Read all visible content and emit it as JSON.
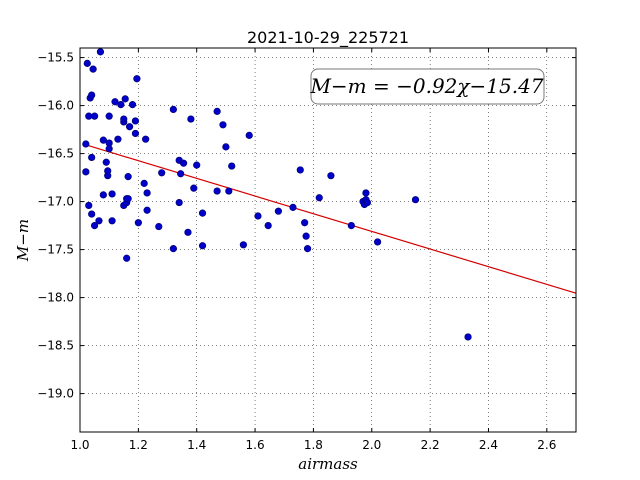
{
  "chart_data": {
    "type": "scatter",
    "title": "2021-10-29_225721",
    "xlabel": "airmass",
    "ylabel": "M−m",
    "xlim": [
      1.0,
      2.7
    ],
    "ylim": [
      -19.4,
      -15.4
    ],
    "y_inverted": true,
    "grid": true,
    "x_ticks": [
      {
        "value": 1.0,
        "label": "1.0"
      },
      {
        "value": 1.2,
        "label": "1.2"
      },
      {
        "value": 1.4,
        "label": "1.4"
      },
      {
        "value": 1.6,
        "label": "1.6"
      },
      {
        "value": 1.8,
        "label": "1.8"
      },
      {
        "value": 2.0,
        "label": "2.0"
      },
      {
        "value": 2.2,
        "label": "2.2"
      },
      {
        "value": 2.4,
        "label": "2.4"
      },
      {
        "value": 2.6,
        "label": "2.6"
      }
    ],
    "y_ticks": [
      {
        "value": -15.5,
        "label": "−15.5"
      },
      {
        "value": -16.0,
        "label": "−16.0"
      },
      {
        "value": -16.5,
        "label": "−16.5"
      },
      {
        "value": -17.0,
        "label": "−17.0"
      },
      {
        "value": -17.5,
        "label": "−17.5"
      },
      {
        "value": -18.0,
        "label": "−18.0"
      },
      {
        "value": -18.5,
        "label": "−18.5"
      },
      {
        "value": -19.0,
        "label": "−19.0"
      }
    ],
    "annotation": "M−m = −0.92χ−15.47",
    "fit": {
      "slope": -0.92,
      "intercept": -15.47,
      "x_range": [
        1.02,
        2.7
      ],
      "color": "#d40000"
    },
    "marker_color": "#0000c8",
    "points": [
      [
        1.02,
        -16.4
      ],
      [
        1.02,
        -16.69
      ],
      [
        1.025,
        -15.56
      ],
      [
        1.03,
        -16.11
      ],
      [
        1.03,
        -17.04
      ],
      [
        1.035,
        -15.92
      ],
      [
        1.04,
        -15.89
      ],
      [
        1.04,
        -16.54
      ],
      [
        1.04,
        -17.13
      ],
      [
        1.045,
        -15.62
      ],
      [
        1.05,
        -16.11
      ],
      [
        1.05,
        -17.25
      ],
      [
        1.065,
        -17.2
      ],
      [
        1.07,
        -15.44
      ],
      [
        1.08,
        -16.93
      ],
      [
        1.08,
        -16.36
      ],
      [
        1.09,
        -16.59
      ],
      [
        1.095,
        -16.73
      ],
      [
        1.095,
        -16.68
      ],
      [
        1.1,
        -16.39
      ],
      [
        1.1,
        -16.11
      ],
      [
        1.1,
        -16.45
      ],
      [
        1.11,
        -16.92
      ],
      [
        1.11,
        -17.2
      ],
      [
        1.12,
        -15.96
      ],
      [
        1.13,
        -16.35
      ],
      [
        1.14,
        -15.99
      ],
      [
        1.15,
        -16.17
      ],
      [
        1.15,
        -16.14
      ],
      [
        1.15,
        -17.04
      ],
      [
        1.155,
        -15.93
      ],
      [
        1.16,
        -17.01
      ],
      [
        1.16,
        -16.97
      ],
      [
        1.16,
        -17.59
      ],
      [
        1.165,
        -16.97
      ],
      [
        1.165,
        -16.74
      ],
      [
        1.17,
        -16.22
      ],
      [
        1.18,
        -15.99
      ],
      [
        1.19,
        -16.29
      ],
      [
        1.19,
        -16.16
      ],
      [
        1.195,
        -15.72
      ],
      [
        1.2,
        -17.22
      ],
      [
        1.22,
        -16.81
      ],
      [
        1.225,
        -16.35
      ],
      [
        1.23,
        -16.91
      ],
      [
        1.23,
        -17.09
      ],
      [
        1.27,
        -17.26
      ],
      [
        1.28,
        -16.7
      ],
      [
        1.32,
        -16.04
      ],
      [
        1.32,
        -17.49
      ],
      [
        1.34,
        -16.57
      ],
      [
        1.34,
        -17.01
      ],
      [
        1.345,
        -16.71
      ],
      [
        1.355,
        -16.6
      ],
      [
        1.37,
        -17.32
      ],
      [
        1.38,
        -16.14
      ],
      [
        1.39,
        -16.86
      ],
      [
        1.4,
        -16.62
      ],
      [
        1.42,
        -17.12
      ],
      [
        1.42,
        -17.46
      ],
      [
        1.47,
        -16.06
      ],
      [
        1.47,
        -16.89
      ],
      [
        1.49,
        -16.2
      ],
      [
        1.5,
        -16.43
      ],
      [
        1.51,
        -16.89
      ],
      [
        1.52,
        -16.63
      ],
      [
        1.56,
        -17.45
      ],
      [
        1.58,
        -16.31
      ],
      [
        1.61,
        -17.15
      ],
      [
        1.645,
        -17.25
      ],
      [
        1.68,
        -17.1
      ],
      [
        1.73,
        -17.06
      ],
      [
        1.755,
        -16.67
      ],
      [
        1.77,
        -17.22
      ],
      [
        1.775,
        -17.36
      ],
      [
        1.78,
        -17.49
      ],
      [
        1.82,
        -16.96
      ],
      [
        1.86,
        -16.73
      ],
      [
        1.93,
        -17.25
      ],
      [
        1.97,
        -17.0
      ],
      [
        1.975,
        -17.03
      ],
      [
        1.98,
        -16.91
      ],
      [
        1.98,
        -16.98
      ],
      [
        1.985,
        -17.01
      ],
      [
        2.02,
        -17.42
      ],
      [
        2.15,
        -16.98
      ],
      [
        2.33,
        -18.41
      ]
    ]
  }
}
